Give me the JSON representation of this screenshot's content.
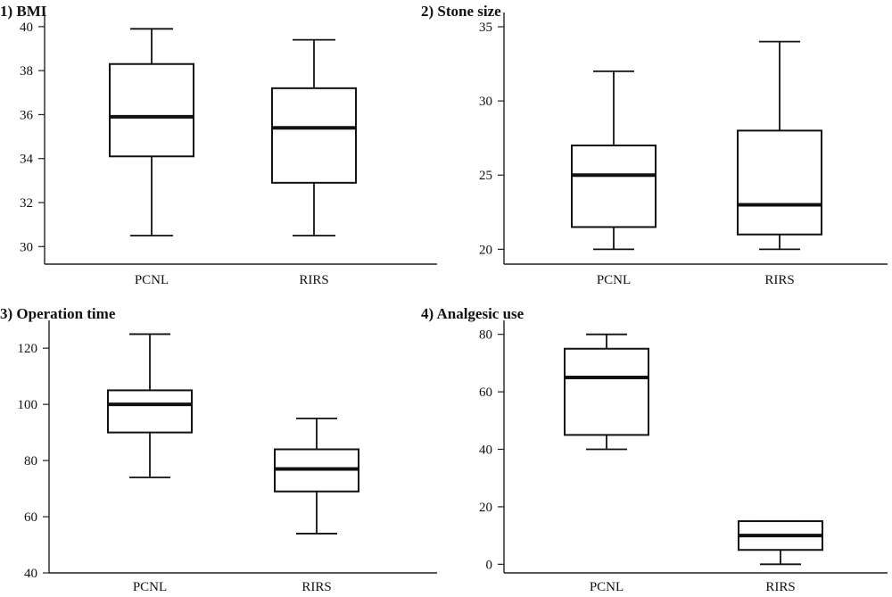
{
  "chart_data": [
    {
      "type": "box",
      "title": "1) BMI",
      "xlabel": "",
      "ylabel": "",
      "ylim": [
        29.2,
        40.4
      ],
      "yticks": [
        30,
        32,
        34,
        36,
        38,
        40
      ],
      "categories": [
        "PCNL",
        "RIRS"
      ],
      "boxes": [
        {
          "category": "PCNL",
          "min": 30.5,
          "q1": 34.1,
          "median": 35.9,
          "q3": 38.3,
          "max": 39.9
        },
        {
          "category": "RIRS",
          "min": 30.5,
          "q1": 32.9,
          "median": 35.4,
          "q3": 37.2,
          "max": 39.4
        }
      ]
    },
    {
      "type": "box",
      "title": "2) Stone size",
      "xlabel": "",
      "ylabel": "",
      "ylim": [
        19.0,
        35.6
      ],
      "yticks": [
        20,
        25,
        30,
        35
      ],
      "categories": [
        "PCNL",
        "RIRS"
      ],
      "boxes": [
        {
          "category": "PCNL",
          "min": 20,
          "q1": 21.5,
          "median": 25,
          "q3": 27,
          "max": 32
        },
        {
          "category": "RIRS",
          "min": 20,
          "q1": 21,
          "median": 23,
          "q3": 28,
          "max": 34
        }
      ]
    },
    {
      "type": "box",
      "title": "3) Operation time",
      "xlabel": "",
      "ylabel": "",
      "ylim": [
        40,
        128
      ],
      "yticks": [
        40,
        60,
        80,
        100,
        120
      ],
      "categories": [
        "PCNL",
        "RIRS"
      ],
      "boxes": [
        {
          "category": "PCNL",
          "min": 74,
          "q1": 90,
          "median": 100,
          "q3": 105,
          "max": 125
        },
        {
          "category": "RIRS",
          "min": 54,
          "q1": 69,
          "median": 77,
          "q3": 84,
          "max": 95
        }
      ]
    },
    {
      "type": "box",
      "title": "4) Analgesic use",
      "xlabel": "",
      "ylabel": "",
      "ylim": [
        -3,
        83
      ],
      "yticks": [
        0,
        20,
        40,
        60,
        80
      ],
      "categories": [
        "PCNL",
        "RIRS"
      ],
      "boxes": [
        {
          "category": "PCNL",
          "min": 40,
          "q1": 45,
          "median": 65,
          "q3": 75,
          "max": 80
        },
        {
          "category": "RIRS",
          "min": 0,
          "q1": 5,
          "median": 10,
          "q3": 15,
          "max": 15
        }
      ]
    }
  ]
}
